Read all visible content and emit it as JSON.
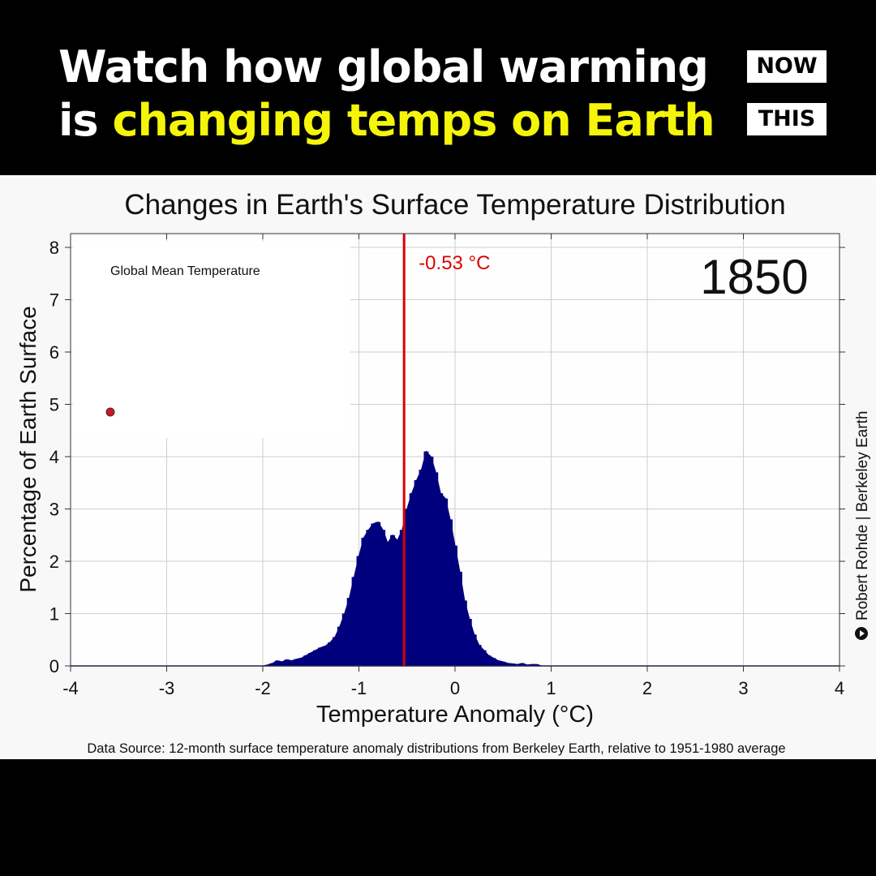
{
  "header": {
    "line1": "Watch how global warming",
    "line2_prefix": "is ",
    "line2_highlight": "changing temps on Earth",
    "logo_top": "NOW",
    "logo_bottom": "THIS",
    "highlight_color": "#f5f50a"
  },
  "credit": {
    "icon": "play-circle-icon",
    "text": "Robert Rohde | Berkeley Earth"
  },
  "source_note": "Data Source: 12-month surface temperature anomaly distributions from Berkeley Earth, relative to 1951-1980 average",
  "chart_data": {
    "type": "area",
    "title": "Changes in Earth's Surface Temperature Distribution",
    "xlabel": "Temperature Anomaly (°C)",
    "ylabel": "Percentage of Earth Surface",
    "xlim": [
      -4,
      4
    ],
    "ylim": [
      0,
      8
    ],
    "xticks": [
      -4,
      -3,
      -2,
      -1,
      0,
      1,
      2,
      3,
      4
    ],
    "yticks": [
      0,
      1,
      2,
      3,
      4,
      5,
      6,
      7,
      8
    ],
    "grid": true,
    "fill_color": "#00007f",
    "year": "1850",
    "mean": {
      "value": -0.53,
      "label": "-0.53 °C",
      "color": "#dd0000"
    },
    "inset": {
      "title": "Global Mean Temperature",
      "points": [
        {
          "x": 1850,
          "y": -0.53
        }
      ],
      "marker_color": "#d81020"
    },
    "series": [
      {
        "name": "1850 distribution",
        "x": [
          -2.2,
          -2.0,
          -1.95,
          -1.9,
          -1.85,
          -1.8,
          -1.75,
          -1.7,
          -1.65,
          -1.6,
          -1.55,
          -1.5,
          -1.45,
          -1.4,
          -1.35,
          -1.3,
          -1.25,
          -1.2,
          -1.15,
          -1.1,
          -1.05,
          -1.0,
          -0.95,
          -0.9,
          -0.85,
          -0.8,
          -0.75,
          -0.7,
          -0.65,
          -0.6,
          -0.55,
          -0.5,
          -0.45,
          -0.4,
          -0.35,
          -0.3,
          -0.25,
          -0.2,
          -0.15,
          -0.1,
          -0.05,
          0.0,
          0.05,
          0.1,
          0.15,
          0.2,
          0.25,
          0.3,
          0.35,
          0.4,
          0.45,
          0.5,
          0.55,
          0.6,
          0.65,
          0.7,
          0.75,
          0.8,
          0.85,
          0.9,
          1.0
        ],
        "values": [
          0,
          0,
          0.02,
          0.05,
          0.1,
          0.08,
          0.12,
          0.1,
          0.13,
          0.15,
          0.2,
          0.25,
          0.3,
          0.35,
          0.38,
          0.45,
          0.55,
          0.75,
          1.0,
          1.3,
          1.7,
          2.1,
          2.45,
          2.6,
          2.72,
          2.75,
          2.6,
          2.35,
          2.5,
          2.4,
          2.6,
          3.0,
          3.3,
          3.55,
          3.75,
          4.1,
          4.0,
          3.7,
          3.3,
          3.2,
          2.8,
          2.3,
          1.8,
          1.25,
          0.9,
          0.6,
          0.4,
          0.3,
          0.2,
          0.15,
          0.1,
          0.08,
          0.05,
          0.04,
          0.03,
          0.05,
          0.02,
          0.03,
          0.03,
          0.0,
          0
        ]
      }
    ]
  }
}
